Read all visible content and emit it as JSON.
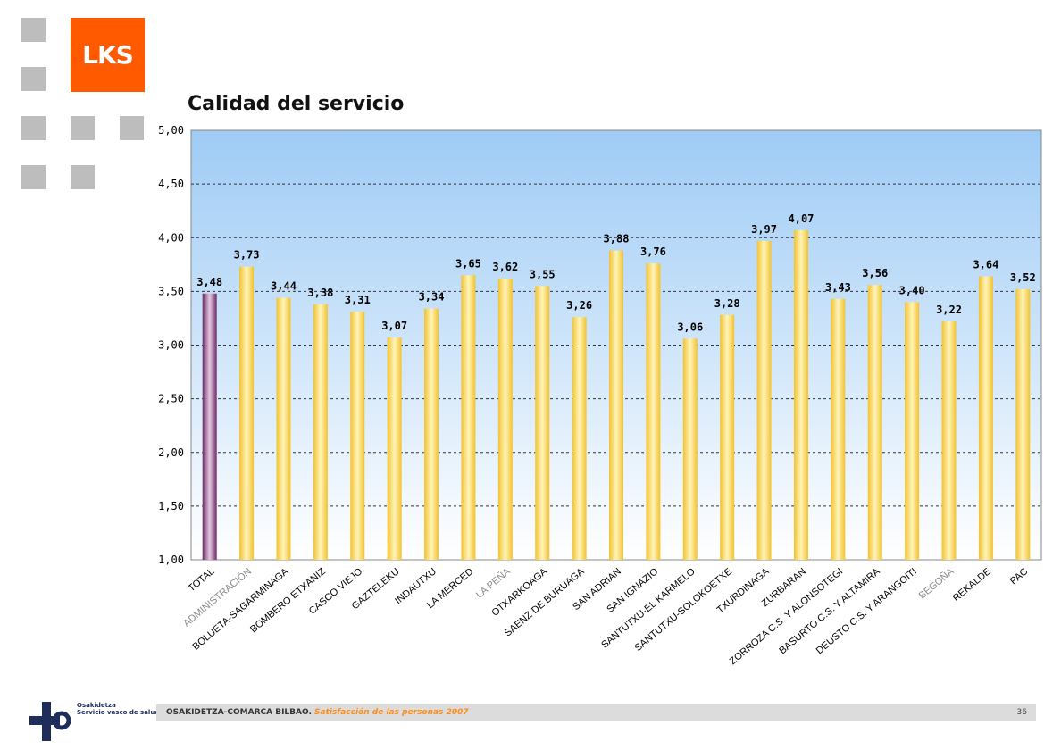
{
  "brand": {
    "logo_text": "LKS",
    "logo_color": "#ff5a00"
  },
  "page_title": "Calidad del servicio",
  "footer": {
    "org": "OSAKIDETZA-COMARCA BILBAO.",
    "subtitle": "Satisfacción de las personas 2007",
    "page_number": "36",
    "osakidetza_line1": "Osakidetza",
    "osakidetza_line2": "Servicio vasco de salud"
  },
  "chart_data": {
    "type": "bar",
    "title": "",
    "xlabel": "",
    "ylabel": "",
    "ylim": [
      1.0,
      5.0
    ],
    "yticks": [
      "1,00",
      "1,50",
      "2,00",
      "2,50",
      "3,00",
      "3,50",
      "4,00",
      "4,50",
      "5,00"
    ],
    "grid": true,
    "legend": "none",
    "categories": [
      "TOTAL",
      "ADMINISTRACIÓN",
      "BOLUETA-SAGARMINAGA",
      "BOMBERO ETXANIZ",
      "CASCO VIEJO",
      "GAZTELEKU",
      "INDAUTXU",
      "LA MERCED",
      "LA PEÑA",
      "OTXARKOAGA",
      "SAENZ DE BURUAGA",
      "SAN ADRIAN",
      "SAN IGNAZIO",
      "SANTUTXU-EL KARMELO",
      "SANTUTXU-SOLOKOETXE",
      "TXURDINAGA",
      "ZURBARAN",
      "ZORROZA C.S. Y ALONSOTEGI",
      "BASURTO C.S. Y ALTAMIRA",
      "DEUSTO C.S. Y ARANGOITI",
      "BEGOÑA",
      "REKALDE",
      "PAC"
    ],
    "values": [
      3.48,
      3.73,
      3.44,
      3.38,
      3.31,
      3.07,
      3.34,
      3.65,
      3.62,
      3.55,
      3.26,
      3.88,
      3.76,
      3.06,
      3.28,
      3.97,
      4.07,
      3.43,
      3.56,
      3.4,
      3.22,
      3.64,
      3.52
    ],
    "value_labels": [
      "3,48",
      "3,73",
      "3,44",
      "3,38",
      "3,31",
      "3,07",
      "3,34",
      "3,65",
      "3,62",
      "3,55",
      "3,26",
      "3,88",
      "3,76",
      "3,06",
      "3,28",
      "3,97",
      "4,07",
      "3,43",
      "3,56",
      "3,40",
      "3,22",
      "3,64",
      "3,52"
    ],
    "colors": {
      "total_bar": "#7a3a74",
      "other_bars": "#f5d24a",
      "plot_top": "#a9d0f5",
      "plot_bottom": "#ffffff",
      "gray_label": "#8a8a8a",
      "dark_label": "#000000"
    },
    "gray_categories": [
      "ADMINISTRACIÓN",
      "LA PEÑA",
      "BEGOÑA"
    ]
  }
}
